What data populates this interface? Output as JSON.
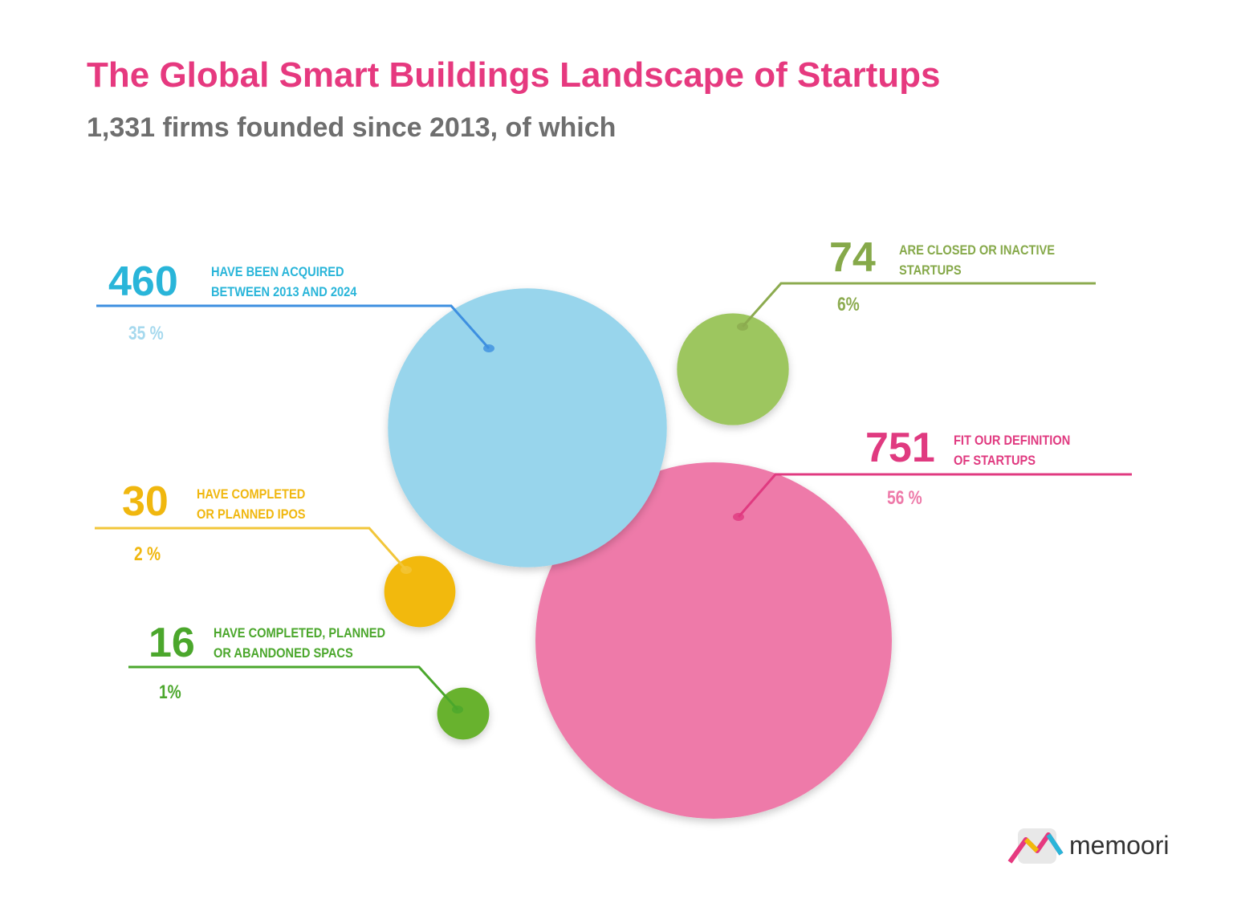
{
  "chart_data": {
    "type": "bubble",
    "title": "The Global Smart Buildings Landscape of Startups",
    "subtitle": "1,331 firms founded since 2013, of which",
    "values": [
      460,
      74,
      751,
      30,
      16
    ],
    "descriptions": [
      [
        "HAVE BEEN ACQUIRED",
        "BETWEEN 2013 AND 2024"
      ],
      [
        "ARE CLOSED OR INACTIVE",
        "STARTUPS"
      ],
      [
        "FIT OUR DEFINITION",
        "OF STARTUPS"
      ],
      [
        "HAVE COMPLETED",
        "OR PLANNED IPOS"
      ],
      [
        "HAVE COMPLETED, PLANNED",
        "OR ABANDONED SPACS"
      ]
    ],
    "percent_labels": [
      "35 %",
      "6%",
      "56 %",
      "2 %",
      "1%"
    ],
    "colors": [
      "#98d5ec",
      "#9dc65e",
      "#ee7aa9",
      "#f2b90a",
      "#67b22e"
    ],
    "label_colors": [
      "#29b5d9",
      "#86a94a",
      "#e03a80",
      "#f0b70f",
      "#4ba72c"
    ],
    "brand": "memoori"
  }
}
